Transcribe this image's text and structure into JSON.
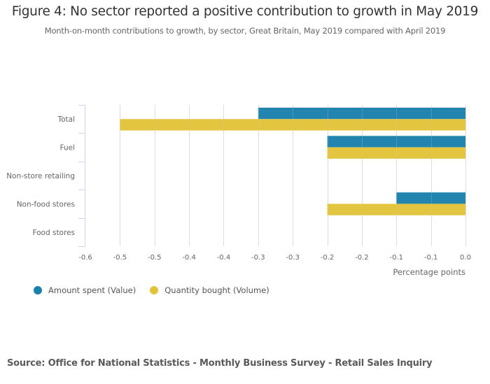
{
  "chart_data": {
    "type": "bar",
    "orientation": "horizontal",
    "title": "Figure 4: No sector reported a positive contribution to growth in May 2019",
    "subtitle": "Month-on-month contributions to growth, by sector, Great Britain, May 2019 compared with April 2019",
    "categories": [
      "Total",
      "Fuel",
      "Non-store retailing",
      "Non-food stores",
      "Food stores"
    ],
    "series": [
      {
        "name": "Amount spent (Value)",
        "color": "#1a81ad",
        "values": [
          -0.3,
          -0.2,
          0.0,
          -0.1,
          0.0
        ]
      },
      {
        "name": "Quantity bought (Volume)",
        "color": "#e2c33a",
        "values": [
          -0.5,
          -0.2,
          0.0,
          -0.2,
          0.0
        ]
      }
    ],
    "xlabel": "Percentage points",
    "ylabel": "",
    "xlim": [
      -0.55,
      0.0
    ],
    "x_ticks": [
      -0.55,
      -0.5,
      -0.45,
      -0.4,
      -0.35,
      -0.3,
      -0.25,
      -0.2,
      -0.15,
      -0.1,
      -0.05,
      0.0
    ],
    "x_tick_labels": [
      "-0.6",
      "-0.5",
      "-0.5",
      "-0.4",
      "-0.4",
      "-0.3",
      "-0.3",
      "-0.2",
      "-0.2",
      "-0.1",
      "-0.1",
      "0.0"
    ],
    "grid": "vertical",
    "legend_position": "bottom-left"
  },
  "source": "Source: Office for National Statistics - Monthly Business Survey - Retail Sales Inquiry"
}
